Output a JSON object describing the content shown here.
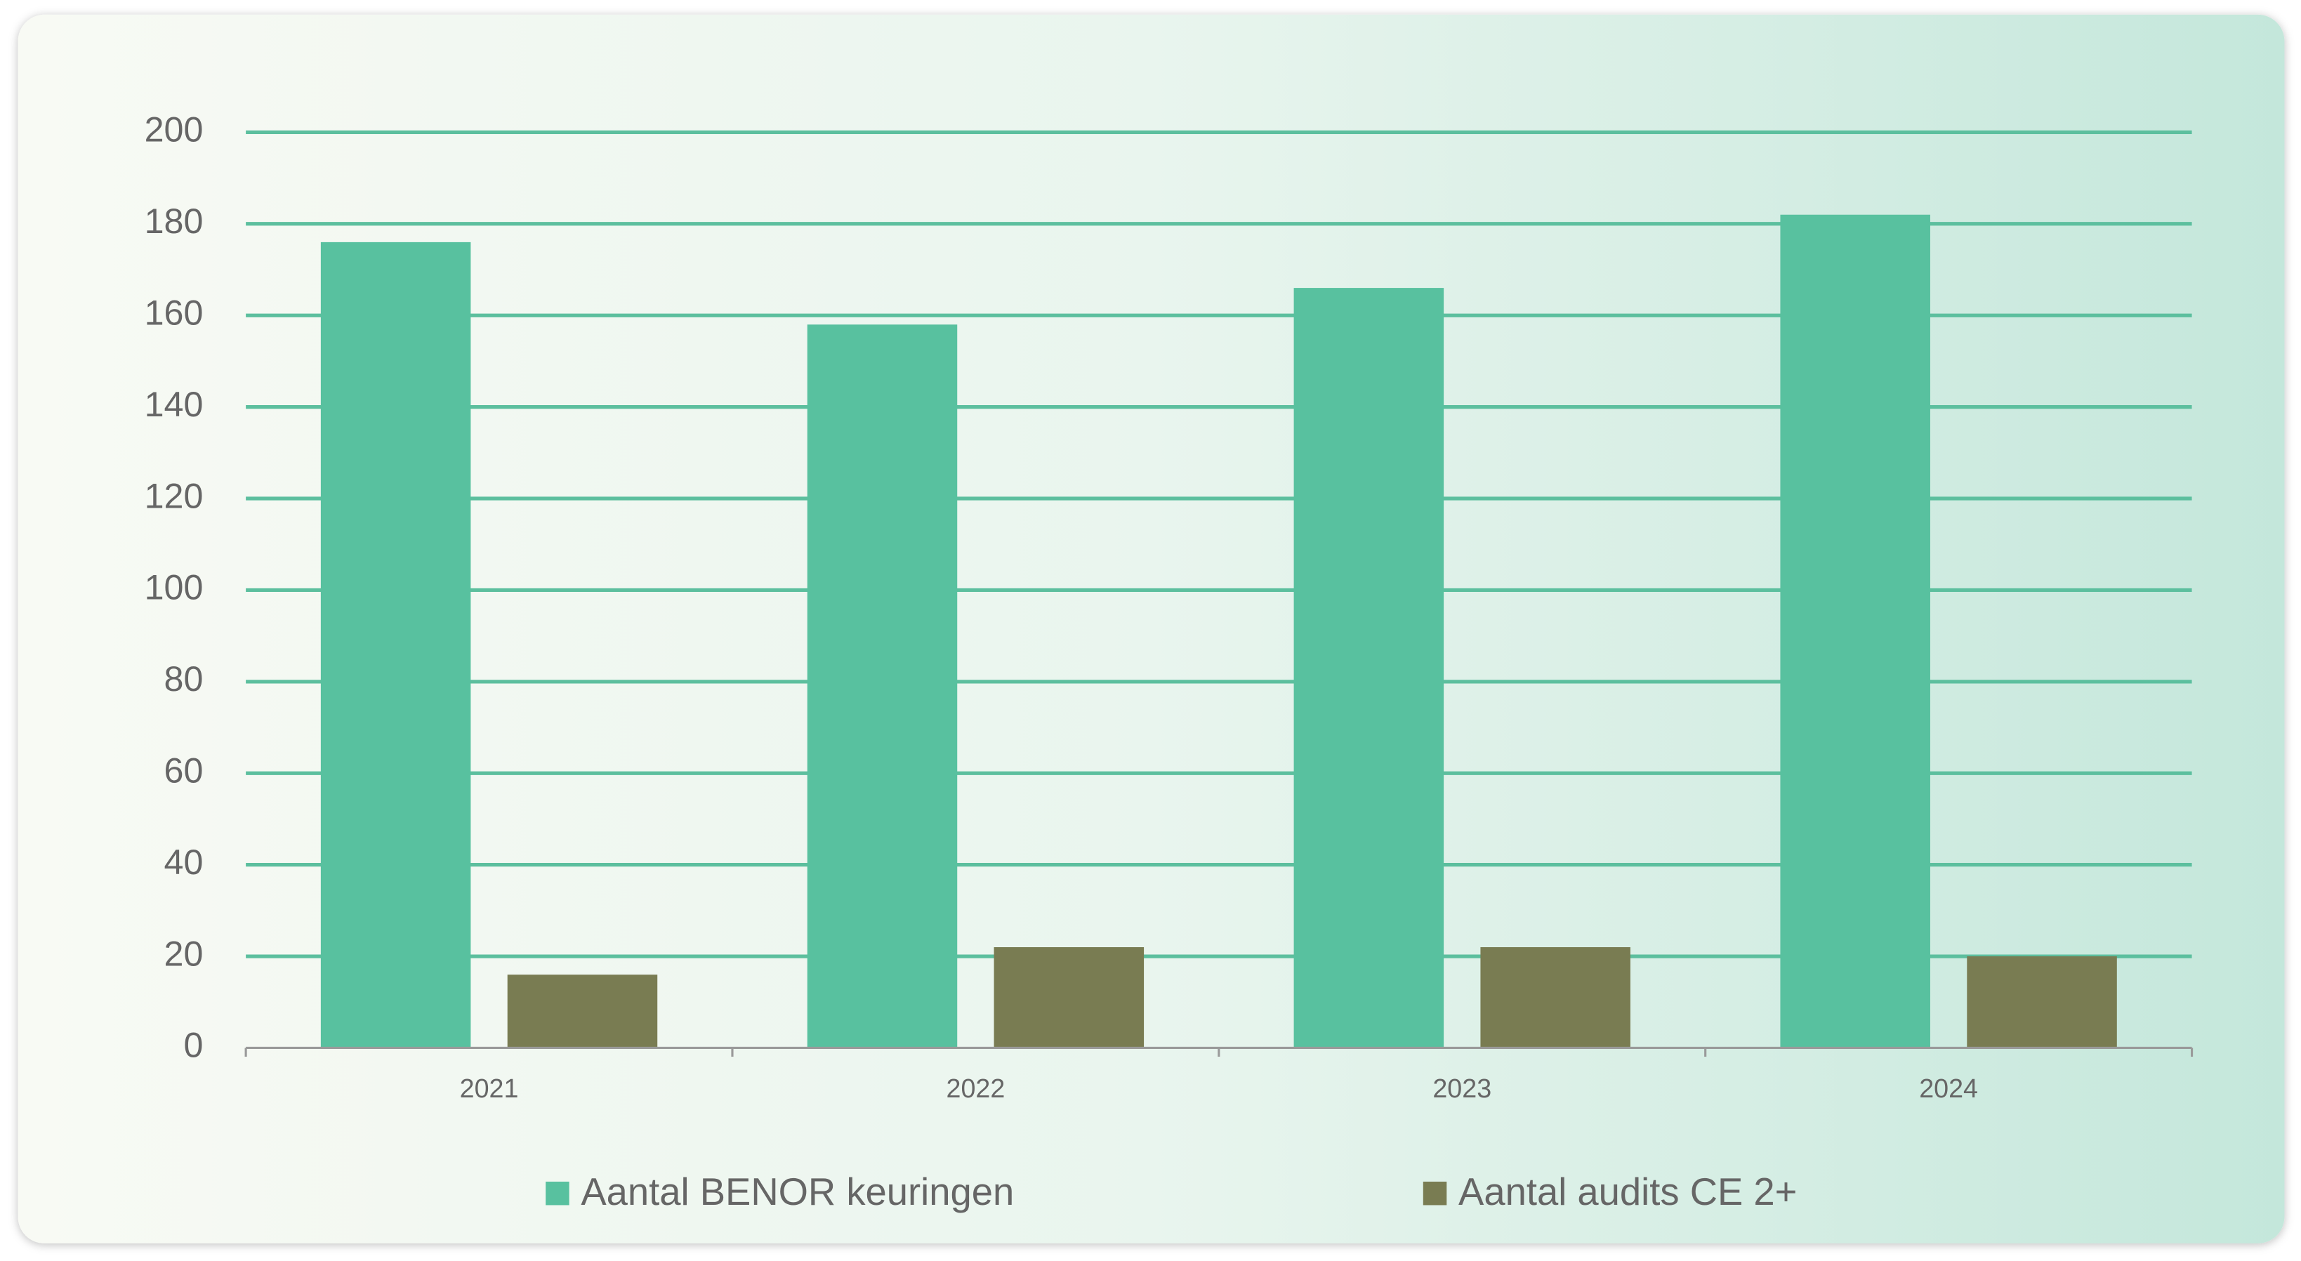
{
  "chart_data": {
    "type": "bar",
    "categories": [
      "2021",
      "2022",
      "2023",
      "2024"
    ],
    "series": [
      {
        "name": "Aantal BENOR keuringen",
        "color": "#58c19f",
        "values": [
          176,
          158,
          166,
          182
        ]
      },
      {
        "name": "Aantal audits CE 2+",
        "color": "#797c52",
        "values": [
          16,
          22,
          22,
          20
        ]
      }
    ],
    "ylim": [
      0,
      200
    ],
    "yticks": [
      0,
      20,
      40,
      60,
      80,
      100,
      120,
      140,
      160,
      180,
      200
    ],
    "grid": true,
    "grid_color": "#5cbf9e",
    "legend": "bottom"
  }
}
